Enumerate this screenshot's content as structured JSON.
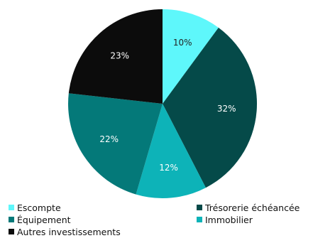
{
  "chart_data": {
    "type": "pie",
    "slices": [
      {
        "label": "Escompte",
        "value": 10,
        "display": "10%",
        "color": "#5ef7fb"
      },
      {
        "label": "Trésorerie échéancée",
        "value": 32,
        "display": "32%",
        "color": "#054a49"
      },
      {
        "label": "Immobilier",
        "value": 12,
        "display": "12%",
        "color": "#0db3b8"
      },
      {
        "label": "Équipement",
        "value": 22,
        "display": "22%",
        "color": "#047979"
      },
      {
        "label": "Autres investissements",
        "value": 23,
        "display": "23%",
        "color": "#0c0c0c"
      }
    ],
    "label_colors": {
      "dark_text": "#222222",
      "light_text": "#ffffff"
    },
    "legend": {
      "placement": "bottom",
      "entries": [
        {
          "label": "Escompte",
          "color": "#5ef7fb"
        },
        {
          "label": "Trésorerie échéancée",
          "color": "#054a49"
        },
        {
          "label": "Équipement",
          "color": "#047979"
        },
        {
          "label": "Immobilier",
          "color": "#0db3b8"
        },
        {
          "label": "Autres investissements",
          "color": "#0c0c0c"
        }
      ]
    }
  }
}
